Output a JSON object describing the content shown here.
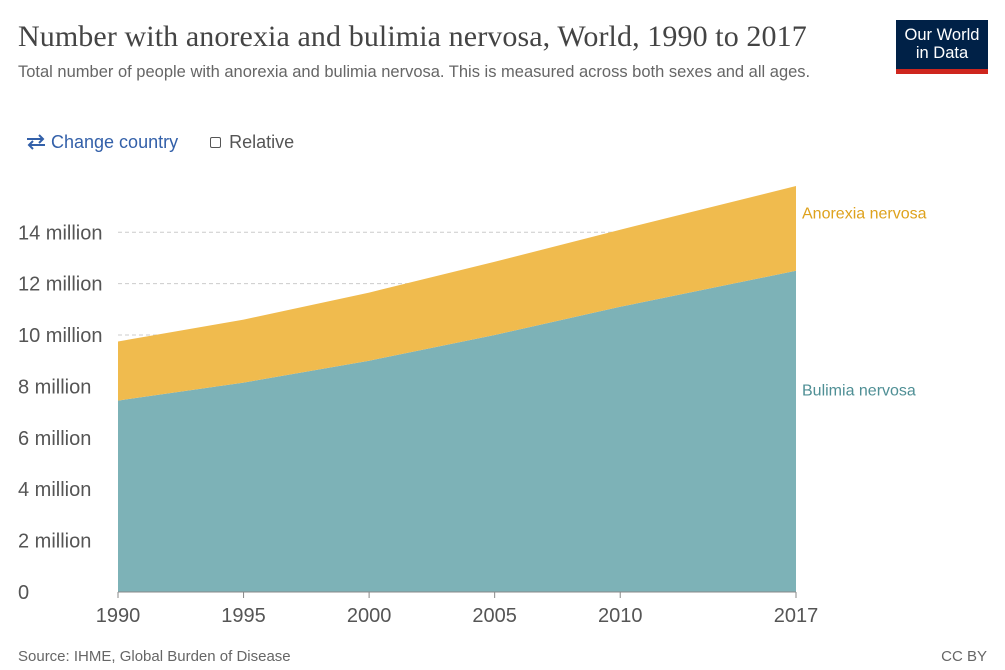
{
  "header": {
    "title": "Number with anorexia and bulimia nervosa, World, 1990 to 2017",
    "subtitle": "Total number of people with anorexia and bulimia nervosa. This is measured across both sexes and all ages.",
    "logo_line1": "Our World",
    "logo_line2": "in Data"
  },
  "controls": {
    "change_country_label": "Change country",
    "relative_label": "Relative"
  },
  "footer": {
    "source": "Source: IHME, Global Burden of Disease",
    "license": "CC BY"
  },
  "colors": {
    "bulimia": "#7db2b7",
    "anorexia": "#f0bb4e",
    "bulimia_text": "#4f8f95",
    "anorexia_text": "#dea21d"
  },
  "chart_data": {
    "type": "area",
    "stacked": true,
    "title": "Number with anorexia and bulimia nervosa, World, 1990 to 2017",
    "xlabel": "",
    "ylabel": "",
    "x": [
      1990,
      1995,
      2000,
      2005,
      2010,
      2017
    ],
    "x_tick_labels": [
      "1990",
      "1995",
      "2000",
      "2005",
      "2010",
      "2017"
    ],
    "y_ticks": [
      0,
      2000000,
      4000000,
      6000000,
      8000000,
      10000000,
      12000000,
      14000000
    ],
    "y_tick_labels": [
      "0",
      "2 million",
      "4 million",
      "6 million",
      "8 million",
      "10 million",
      "12 million",
      "14 million"
    ],
    "ylim": [
      0,
      15800000
    ],
    "grid": true,
    "series": [
      {
        "name": "Bulimia nervosa",
        "values": [
          7450000,
          8150000,
          9000000,
          10000000,
          11100000,
          12500000
        ]
      },
      {
        "name": "Anorexia nervosa",
        "values": [
          2300000,
          2450000,
          2650000,
          2850000,
          3000000,
          3300000
        ]
      }
    ]
  }
}
